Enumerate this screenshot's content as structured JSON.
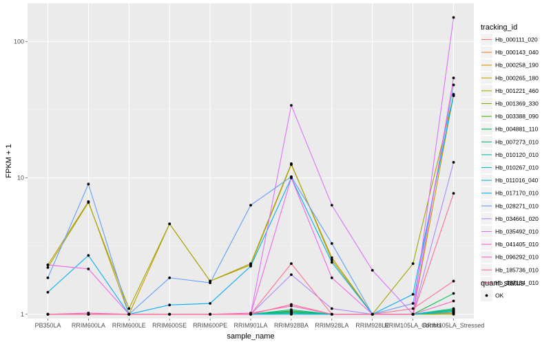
{
  "chart_data": {
    "type": "line",
    "xlabel": "sample_name",
    "ylabel": "FPKM + 1",
    "y_scale": "log10",
    "ylim": [
      0.93,
      190
    ],
    "y_ticks": [
      1,
      10,
      100
    ],
    "y_tick_labels": [
      "1",
      "10",
      "100"
    ],
    "categories": [
      "PB350LA",
      "RRIM600LA",
      "RRIM600LE",
      "RRIM600SE",
      "RRIM600PE",
      "RRIM901LA",
      "RRIM928BA",
      "RRIM928LA",
      "RRIM928LE",
      "RRIM105LA_Control",
      "RRIM105LA_Stressed"
    ],
    "legend_title": "tracking_id",
    "series": [
      {
        "name": "Hb_000111_020",
        "color": "#F8766D",
        "values": [
          1.0,
          1.0,
          1.0,
          1.0,
          1.0,
          1.0,
          1.05,
          1.0,
          1.0,
          1.0,
          1.05
        ]
      },
      {
        "name": "Hb_000143_040",
        "color": "#EA8331",
        "values": [
          1.0,
          1.0,
          1.0,
          1.0,
          1.0,
          1.0,
          1.0,
          1.0,
          1.0,
          1.0,
          1.02
        ]
      },
      {
        "name": "Hb_000258_190",
        "color": "#D89000",
        "values": [
          1.0,
          1.0,
          1.0,
          1.0,
          1.0,
          1.0,
          1.03,
          1.0,
          1.0,
          1.0,
          1.02
        ]
      },
      {
        "name": "Hb_000265_180",
        "color": "#C09B00",
        "values": [
          2.3,
          6.7,
          1.0,
          4.6,
          1.75,
          2.3,
          12.5,
          2.6,
          1.0,
          1.0,
          41
        ]
      },
      {
        "name": "Hb_001221_460",
        "color": "#A3A500",
        "values": [
          2.2,
          6.6,
          1.1,
          4.6,
          1.75,
          2.35,
          12.7,
          2.5,
          1.0,
          2.35,
          40
        ]
      },
      {
        "name": "Hb_001369_330",
        "color": "#7CAE00",
        "values": [
          1.0,
          1.0,
          1.0,
          1.0,
          1.0,
          1.0,
          1.02,
          1.0,
          1.0,
          1.0,
          1.0
        ]
      },
      {
        "name": "Hb_003388_090",
        "color": "#39B600",
        "values": [
          1.0,
          1.0,
          1.0,
          1.0,
          1.0,
          1.0,
          1.04,
          1.0,
          1.0,
          1.0,
          1.08
        ]
      },
      {
        "name": "Hb_004881_110",
        "color": "#00BB4E",
        "values": [
          1.0,
          1.0,
          1.0,
          1.0,
          1.0,
          1.0,
          1.06,
          1.0,
          1.0,
          1.0,
          1.42
        ]
      },
      {
        "name": "Hb_007273_010",
        "color": "#00BF7D",
        "values": [
          1.0,
          1.0,
          1.0,
          1.0,
          1.0,
          1.0,
          1.08,
          1.0,
          1.0,
          1.0,
          1.07
        ]
      },
      {
        "name": "Hb_010120_010",
        "color": "#00C1A3",
        "values": [
          1.0,
          1.0,
          1.0,
          1.0,
          1.0,
          1.0,
          1.02,
          1.0,
          1.0,
          1.0,
          1.1
        ]
      },
      {
        "name": "Hb_010267_010",
        "color": "#00BFC4",
        "values": [
          1.0,
          1.0,
          1.0,
          1.0,
          1.0,
          1.0,
          1.03,
          1.0,
          1.0,
          1.0,
          1.05
        ]
      },
      {
        "name": "Hb_011016_040",
        "color": "#00B9E3",
        "values": [
          1.0,
          1.0,
          1.0,
          1.0,
          1.0,
          1.0,
          1.0,
          1.0,
          1.0,
          1.0,
          1.04
        ]
      },
      {
        "name": "Hb_017170_010",
        "color": "#00ADFA",
        "values": [
          1.45,
          2.7,
          1.0,
          1.17,
          1.2,
          2.25,
          10.0,
          2.4,
          1.0,
          1.4,
          40
        ]
      },
      {
        "name": "Hb_028271_010",
        "color": "#619CFF",
        "values": [
          1.85,
          9.0,
          1.0,
          1.85,
          1.7,
          6.3,
          10.2,
          3.3,
          1.0,
          1.2,
          48
        ]
      },
      {
        "name": "Hb_034661_020",
        "color": "#AE87FF",
        "values": [
          1.0,
          1.0,
          1.0,
          1.0,
          1.0,
          1.0,
          1.95,
          1.1,
          1.0,
          1.0,
          13
        ]
      },
      {
        "name": "Hb_035492_010",
        "color": "#DB72FB",
        "values": [
          1.0,
          1.0,
          1.0,
          1.0,
          1.0,
          1.0,
          34,
          6.3,
          2.1,
          1.0,
          150
        ]
      },
      {
        "name": "Hb_041405_010",
        "color": "#F564E3",
        "values": [
          2.3,
          2.15,
          1.0,
          1.0,
          1.0,
          1.0,
          10.0,
          1.85,
          1.0,
          1.0,
          54
        ]
      },
      {
        "name": "Hb_096292_010",
        "color": "#FF61C3",
        "values": [
          1.0,
          1.02,
          1.0,
          1.0,
          1.0,
          1.02,
          1.15,
          1.0,
          1.0,
          1.0,
          1.25
        ]
      },
      {
        "name": "Hb_185736_010",
        "color": "#FF6C91",
        "values": [
          1.0,
          1.0,
          1.0,
          1.0,
          1.0,
          1.0,
          1.18,
          1.0,
          1.0,
          1.0,
          7.7
        ]
      },
      {
        "name": "Hb_187134_010",
        "color": "#FF6C91",
        "values": [
          1.0,
          1.0,
          1.0,
          1.0,
          1.0,
          1.0,
          2.35,
          1.0,
          1.0,
          1.1,
          1.75
        ]
      }
    ],
    "point_legend_title": "quant_status",
    "point_legend_label": "OK",
    "grid": true,
    "legend_position": "right"
  }
}
